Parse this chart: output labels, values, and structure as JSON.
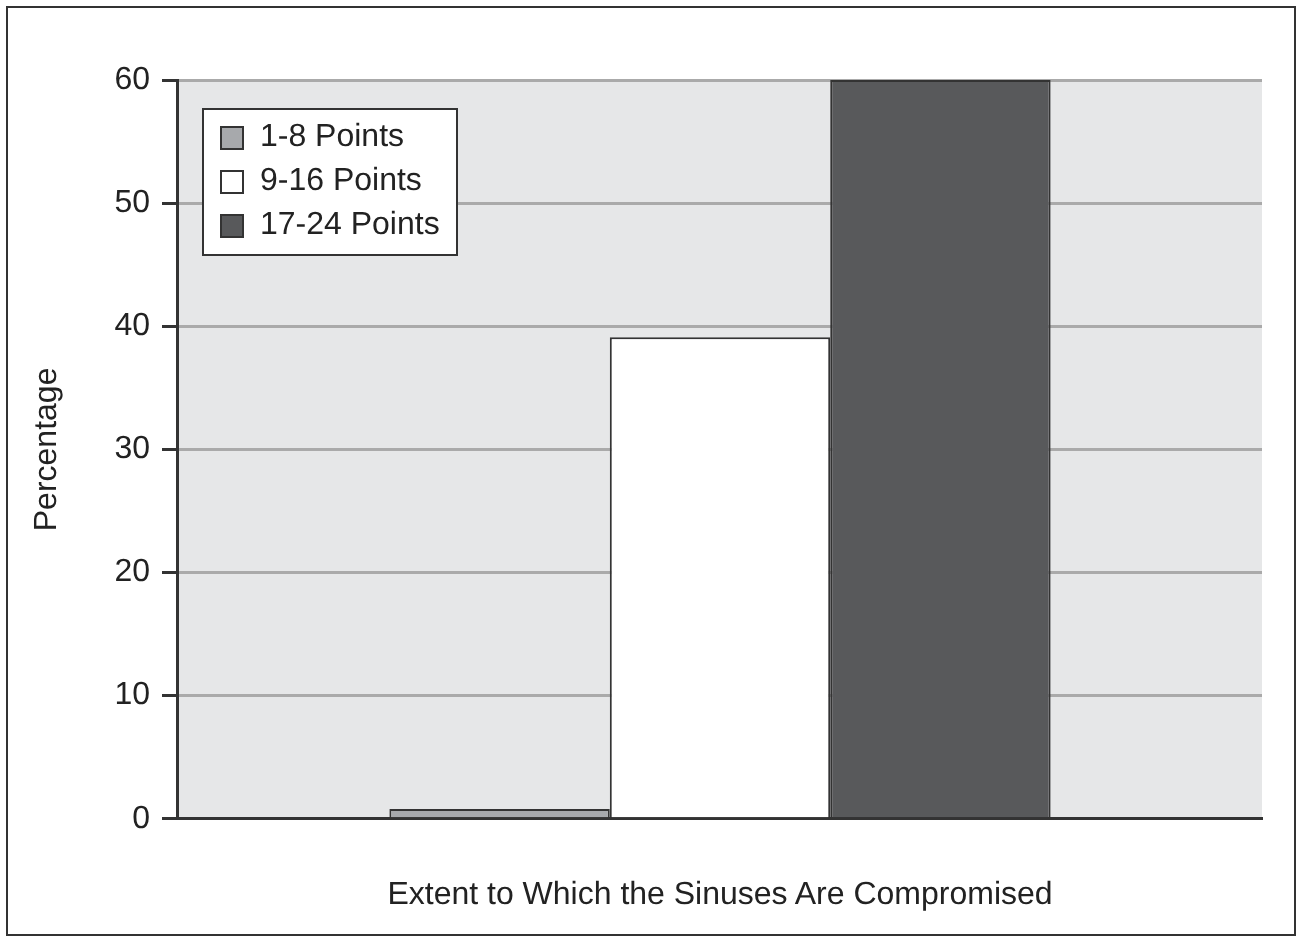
{
  "chart_data": {
    "type": "bar",
    "xlabel": "Extent to Which the Sinuses Are Compromised",
    "ylabel": "Percentage",
    "categories": [
      null
    ],
    "series": [
      {
        "name": "1-8 Points",
        "color": "#a7a9ac",
        "values": [
          0.8
        ]
      },
      {
        "name": "9-16 Points",
        "color": "#ffffff",
        "values": [
          39.1
        ]
      },
      {
        "name": "17-24 Points",
        "color": "#58595b",
        "values": [
          60
        ]
      }
    ],
    "ylim": [
      0,
      60
    ],
    "yticks": [
      0,
      10,
      20,
      30,
      40,
      50,
      60
    ],
    "grid": "y",
    "legend": "top left"
  }
}
